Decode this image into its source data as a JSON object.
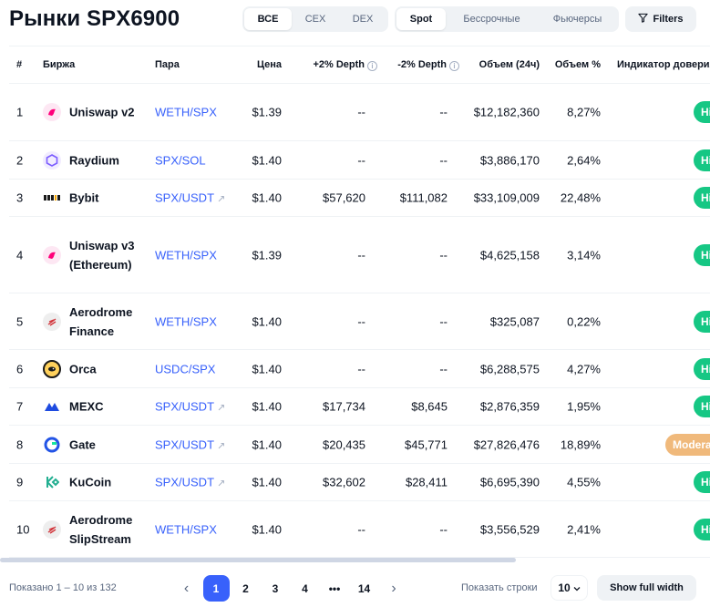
{
  "page": {
    "title": "Рынки SPX6900"
  },
  "filters_bar": {
    "exchange_types": [
      "ВСЕ",
      "CEX",
      "DEX"
    ],
    "market_types": [
      "Spot",
      "Бессрочные",
      "Фьючерсы"
    ],
    "filters_label": "Filters"
  },
  "table": {
    "headers": {
      "num": "#",
      "exchange": "Биржа",
      "pair": "Пара",
      "price": "Цена",
      "plus_depth": "+2% Depth",
      "minus_depth": "-2% Depth",
      "volume": "Объем (24ч)",
      "volume_pct": "Объем %",
      "trust": "Индикатор доверия"
    },
    "rows": [
      {
        "num": "1",
        "exchange": "Uniswap v2",
        "pair": "WETH/SPX",
        "price": "$1.39",
        "plus_depth": "--",
        "minus_depth": "--",
        "volume": "$12,182,360",
        "volume_pct": "8,27%",
        "trust": "High"
      },
      {
        "num": "2",
        "exchange": "Raydium",
        "pair": "SPX/SOL",
        "price": "$1.40",
        "plus_depth": "--",
        "minus_depth": "--",
        "volume": "$3,886,170",
        "volume_pct": "2,64%",
        "trust": "High"
      },
      {
        "num": "3",
        "exchange": "Bybit",
        "pair": "SPX/USDT",
        "price": "$1.40",
        "plus_depth": "$57,620",
        "minus_depth": "$111,082",
        "volume": "$33,109,009",
        "volume_pct": "22,48%",
        "trust": "High"
      },
      {
        "num": "4",
        "exchange": "Uniswap v3 (Ethereum)",
        "pair": "WETH/SPX",
        "price": "$1.39",
        "plus_depth": "--",
        "minus_depth": "--",
        "volume": "$4,625,158",
        "volume_pct": "3,14%",
        "trust": "High"
      },
      {
        "num": "5",
        "exchange": "Aerodrome Finance",
        "pair": "WETH/SPX",
        "price": "$1.40",
        "plus_depth": "--",
        "minus_depth": "--",
        "volume": "$325,087",
        "volume_pct": "0,22%",
        "trust": "High"
      },
      {
        "num": "6",
        "exchange": "Orca",
        "pair": "USDC/SPX",
        "price": "$1.40",
        "plus_depth": "--",
        "minus_depth": "--",
        "volume": "$6,288,575",
        "volume_pct": "4,27%",
        "trust": "High"
      },
      {
        "num": "7",
        "exchange": "MEXC",
        "pair": "SPX/USDT",
        "price": "$1.40",
        "plus_depth": "$17,734",
        "minus_depth": "$8,645",
        "volume": "$2,876,359",
        "volume_pct": "1,95%",
        "trust": "High"
      },
      {
        "num": "8",
        "exchange": "Gate",
        "pair": "SPX/USDT",
        "price": "$1.40",
        "plus_depth": "$20,435",
        "minus_depth": "$45,771",
        "volume": "$27,826,476",
        "volume_pct": "18,89%",
        "trust": "Moderate"
      },
      {
        "num": "9",
        "exchange": "KuCoin",
        "pair": "SPX/USDT",
        "price": "$1.40",
        "plus_depth": "$32,602",
        "minus_depth": "$28,411",
        "volume": "$6,695,390",
        "volume_pct": "4,55%",
        "trust": "High"
      },
      {
        "num": "10",
        "exchange": "Aerodrome SlipStream",
        "pair": "WETH/SPX",
        "price": "$1.40",
        "plus_depth": "--",
        "minus_depth": "--",
        "volume": "$3,556,529",
        "volume_pct": "2,41%",
        "trust": "High"
      }
    ]
  },
  "footer": {
    "showing": "Показано 1 – 10 из 132",
    "pages": [
      "1",
      "2",
      "3",
      "4",
      "•••",
      "14"
    ],
    "rows_label": "Показать строки",
    "rows_value": "10",
    "full_width_label": "Show full width"
  },
  "colors": {
    "accent": "#3861fb",
    "trust_high": "#16c784",
    "trust_moderate": "#f0b97b"
  }
}
